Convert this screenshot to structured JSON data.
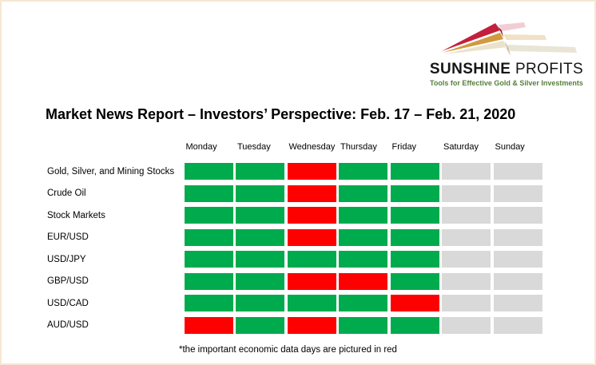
{
  "page": {
    "background": "#ffffff",
    "border_color": "#f6e7d2"
  },
  "logo": {
    "brand_first": "SUNSHINE",
    "brand_second": " PROFITS",
    "tagline": "Tools for Effective Gold & Silver Investments",
    "colors": {
      "arrow_red": "#c2203c",
      "arrow_gold": "#d09a3e",
      "arrow_cream": "#eae2cb",
      "tagline_green": "#567f3b",
      "text": "#161616"
    }
  },
  "title": "Market News Report – Investors’ Perspective: Feb. 17 – Feb. 21, 2020",
  "chart_data": {
    "type": "heatmap",
    "title": "Market News Report – Investors’ Perspective: Feb. 17 – Feb. 21, 2020",
    "x_categories": [
      "Monday",
      "Tuesday",
      "Wednesday",
      "Thursday",
      "Friday",
      "Saturday",
      "Sunday"
    ],
    "y_categories": [
      "Gold, Silver, and Mining Stocks",
      "Crude Oil",
      "Stock Markets",
      "EUR/USD",
      "USD/JPY",
      "GBP/USD",
      "USD/CAD",
      "AUD/USD"
    ],
    "values": [
      [
        "green",
        "green",
        "red",
        "green",
        "green",
        "grey",
        "grey"
      ],
      [
        "green",
        "green",
        "red",
        "green",
        "green",
        "grey",
        "grey"
      ],
      [
        "green",
        "green",
        "red",
        "green",
        "green",
        "grey",
        "grey"
      ],
      [
        "green",
        "green",
        "red",
        "green",
        "green",
        "grey",
        "grey"
      ],
      [
        "green",
        "green",
        "green",
        "green",
        "green",
        "grey",
        "grey"
      ],
      [
        "green",
        "green",
        "red",
        "red",
        "green",
        "grey",
        "grey"
      ],
      [
        "green",
        "green",
        "green",
        "green",
        "red",
        "grey",
        "grey"
      ],
      [
        "red",
        "green",
        "red",
        "green",
        "green",
        "grey",
        "grey"
      ]
    ],
    "color_map": {
      "green": "#00ab4e",
      "red": "#fd0000",
      "grey": "#d9d9d9"
    },
    "legend": {
      "red": "important economic data day"
    },
    "annotation": "*the important economic data days are pictured in red",
    "grid": false,
    "legend_position": "none"
  },
  "footnote": "*the important economic data days are pictured in red"
}
